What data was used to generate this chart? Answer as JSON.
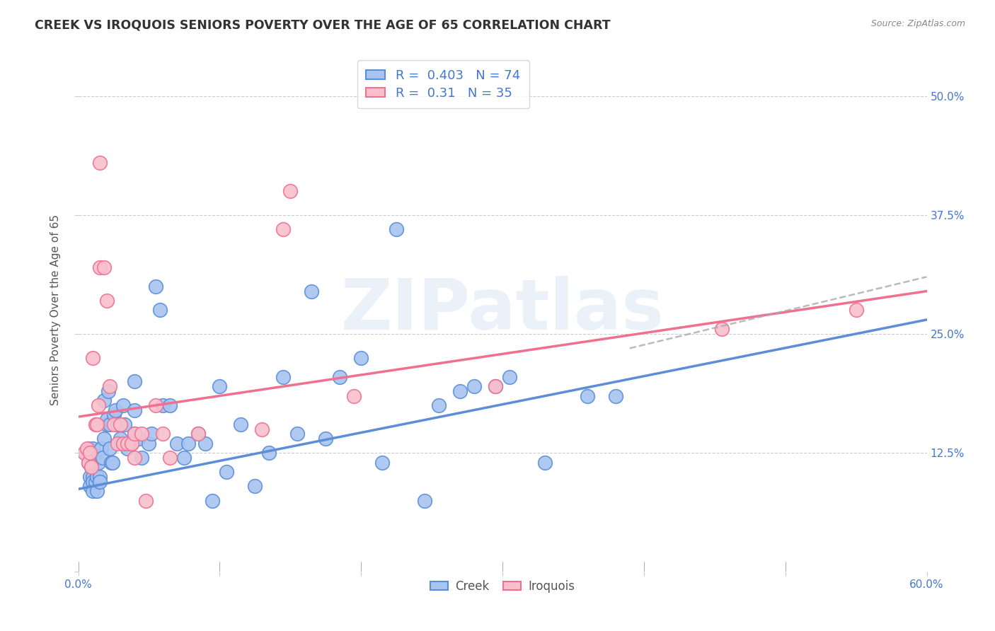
{
  "title": "CREEK VS IROQUOIS SENIORS POVERTY OVER THE AGE OF 65 CORRELATION CHART",
  "source": "Source: ZipAtlas.com",
  "ylabel": "Seniors Poverty Over the Age of 65",
  "xlim": [
    0.0,
    0.6
  ],
  "ylim": [
    0.0,
    0.55
  ],
  "creek_color": "#5b8dd9",
  "creek_fill": "#a8c4f0",
  "iroquois_color": "#f07090",
  "iroquois_fill": "#f8c0cc",
  "creek_R": 0.403,
  "creek_N": 74,
  "iroquois_R": 0.31,
  "iroquois_N": 35,
  "legend_label_creek": "Creek",
  "legend_label_iroquois": "Iroquois",
  "watermark": "ZIPatlas",
  "ytick_vals": [
    0.0,
    0.125,
    0.25,
    0.375,
    0.5
  ],
  "ytick_labels": [
    "",
    "12.5%",
    "25.0%",
    "37.5%",
    "50.0%"
  ],
  "xtick_vals": [
    0.0,
    0.1,
    0.2,
    0.3,
    0.4,
    0.5,
    0.6
  ],
  "creek_line": [
    0.0,
    0.087,
    0.6,
    0.265
  ],
  "iroquois_line": [
    0.0,
    0.163,
    0.6,
    0.295
  ],
  "dash_line": [
    0.39,
    0.235,
    0.6,
    0.31
  ],
  "creek_points": [
    [
      0.005,
      0.125
    ],
    [
      0.007,
      0.13
    ],
    [
      0.007,
      0.115
    ],
    [
      0.008,
      0.1
    ],
    [
      0.008,
      0.09
    ],
    [
      0.009,
      0.11
    ],
    [
      0.01,
      0.13
    ],
    [
      0.01,
      0.1
    ],
    [
      0.01,
      0.095
    ],
    [
      0.01,
      0.085
    ],
    [
      0.012,
      0.095
    ],
    [
      0.013,
      0.085
    ],
    [
      0.013,
      0.1
    ],
    [
      0.014,
      0.115
    ],
    [
      0.015,
      0.1
    ],
    [
      0.015,
      0.095
    ],
    [
      0.016,
      0.13
    ],
    [
      0.017,
      0.12
    ],
    [
      0.018,
      0.14
    ],
    [
      0.018,
      0.18
    ],
    [
      0.02,
      0.155
    ],
    [
      0.02,
      0.16
    ],
    [
      0.021,
      0.19
    ],
    [
      0.022,
      0.155
    ],
    [
      0.022,
      0.13
    ],
    [
      0.023,
      0.115
    ],
    [
      0.024,
      0.115
    ],
    [
      0.025,
      0.165
    ],
    [
      0.026,
      0.17
    ],
    [
      0.028,
      0.155
    ],
    [
      0.03,
      0.14
    ],
    [
      0.032,
      0.175
    ],
    [
      0.033,
      0.155
    ],
    [
      0.035,
      0.13
    ],
    [
      0.038,
      0.135
    ],
    [
      0.04,
      0.145
    ],
    [
      0.04,
      0.17
    ],
    [
      0.04,
      0.2
    ],
    [
      0.043,
      0.14
    ],
    [
      0.045,
      0.12
    ],
    [
      0.05,
      0.135
    ],
    [
      0.052,
      0.145
    ],
    [
      0.055,
      0.3
    ],
    [
      0.058,
      0.275
    ],
    [
      0.06,
      0.175
    ],
    [
      0.065,
      0.175
    ],
    [
      0.07,
      0.135
    ],
    [
      0.075,
      0.12
    ],
    [
      0.078,
      0.135
    ],
    [
      0.085,
      0.145
    ],
    [
      0.09,
      0.135
    ],
    [
      0.095,
      0.075
    ],
    [
      0.1,
      0.195
    ],
    [
      0.105,
      0.105
    ],
    [
      0.115,
      0.155
    ],
    [
      0.125,
      0.09
    ],
    [
      0.135,
      0.125
    ],
    [
      0.145,
      0.205
    ],
    [
      0.155,
      0.145
    ],
    [
      0.165,
      0.295
    ],
    [
      0.175,
      0.14
    ],
    [
      0.185,
      0.205
    ],
    [
      0.2,
      0.225
    ],
    [
      0.215,
      0.115
    ],
    [
      0.225,
      0.36
    ],
    [
      0.245,
      0.075
    ],
    [
      0.255,
      0.175
    ],
    [
      0.27,
      0.19
    ],
    [
      0.28,
      0.195
    ],
    [
      0.295,
      0.195
    ],
    [
      0.305,
      0.205
    ],
    [
      0.33,
      0.115
    ],
    [
      0.36,
      0.185
    ],
    [
      0.38,
      0.185
    ]
  ],
  "iroquois_points": [
    [
      0.004,
      0.125
    ],
    [
      0.006,
      0.13
    ],
    [
      0.007,
      0.115
    ],
    [
      0.008,
      0.125
    ],
    [
      0.009,
      0.11
    ],
    [
      0.01,
      0.225
    ],
    [
      0.012,
      0.155
    ],
    [
      0.013,
      0.155
    ],
    [
      0.014,
      0.175
    ],
    [
      0.015,
      0.43
    ],
    [
      0.015,
      0.32
    ],
    [
      0.018,
      0.32
    ],
    [
      0.02,
      0.285
    ],
    [
      0.022,
      0.195
    ],
    [
      0.025,
      0.155
    ],
    [
      0.028,
      0.135
    ],
    [
      0.03,
      0.155
    ],
    [
      0.032,
      0.135
    ],
    [
      0.035,
      0.135
    ],
    [
      0.038,
      0.135
    ],
    [
      0.04,
      0.145
    ],
    [
      0.04,
      0.12
    ],
    [
      0.045,
      0.145
    ],
    [
      0.048,
      0.075
    ],
    [
      0.055,
      0.175
    ],
    [
      0.06,
      0.145
    ],
    [
      0.065,
      0.12
    ],
    [
      0.085,
      0.145
    ],
    [
      0.13,
      0.15
    ],
    [
      0.145,
      0.36
    ],
    [
      0.15,
      0.4
    ],
    [
      0.195,
      0.185
    ],
    [
      0.295,
      0.195
    ],
    [
      0.455,
      0.255
    ],
    [
      0.55,
      0.275
    ]
  ]
}
